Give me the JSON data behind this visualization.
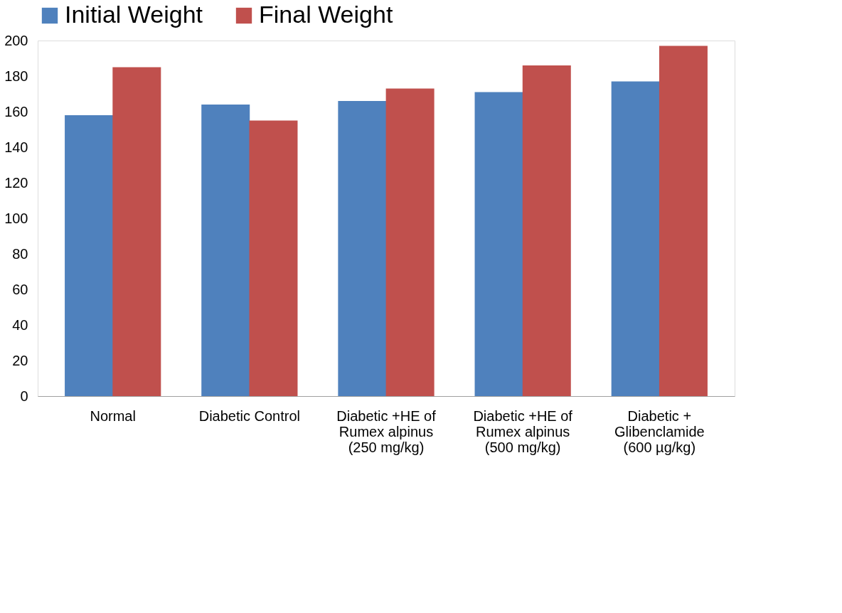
{
  "chart_data": {
    "type": "bar",
    "categories": [
      "Normal",
      "Diabetic Control",
      "Diabetic +HE of Rumex alpinus (250 mg/kg)",
      "Diabetic +HE of Rumex alpinus (500 mg/kg)",
      "Diabetic + Glibenclamide (600 µg/kg)"
    ],
    "series": [
      {
        "name": "Initial Weight",
        "color": "#4f81bd",
        "values": [
          158,
          164,
          166,
          171,
          177
        ]
      },
      {
        "name": "Final Weight",
        "color": "#c0504d",
        "values": [
          185,
          155,
          173,
          186,
          197
        ]
      }
    ],
    "ylim": [
      0,
      200
    ],
    "yticks": [
      0,
      20,
      40,
      60,
      80,
      100,
      120,
      140,
      160,
      180,
      200
    ],
    "grid": false,
    "legend": "top"
  }
}
